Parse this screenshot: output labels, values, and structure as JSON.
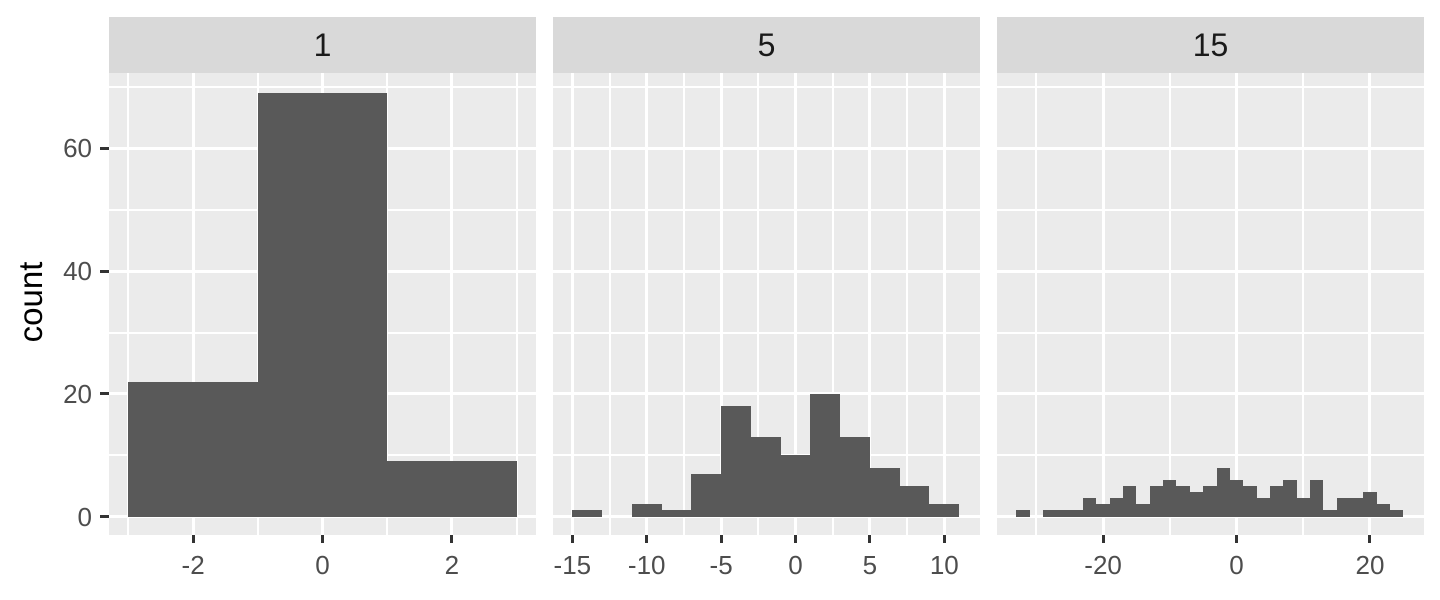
{
  "figure": {
    "y_axis_title": "count",
    "y_ticks": [
      0,
      20,
      40,
      60
    ],
    "y_tick_labels": [
      "0",
      "20",
      "40",
      "60"
    ],
    "y_minor_gridlines": [
      10,
      30,
      50,
      70
    ],
    "ylim": [
      -3,
      72.3
    ],
    "colors": {
      "bar_fill": "#595959",
      "panel_bg": "#EBEBEB",
      "strip_bg": "#D9D9D9",
      "grid": "#FFFFFF",
      "axis_text": "#4D4D4D",
      "strip_text": "#1A1A1A",
      "tick_mark": "#333333",
      "axis_title": "#000000",
      "background": "#FFFFFF"
    }
  },
  "chart_data": [
    {
      "type": "bar",
      "subtype": "histogram",
      "facet_label": "1",
      "ylabel": "count",
      "bin_edges": [
        -3,
        -1,
        1,
        3
      ],
      "counts": [
        22,
        69,
        9
      ],
      "x_ticks": [
        -2,
        0,
        2
      ],
      "x_tick_labels": [
        "-2",
        "0",
        "2"
      ],
      "x_minor_gridlines": [
        -3,
        -1,
        1,
        3
      ],
      "xlim": [
        -3.3,
        3.3
      ],
      "ylim": [
        -3,
        72.3
      ],
      "grid": "on",
      "legend": "none"
    },
    {
      "type": "bar",
      "subtype": "histogram",
      "facet_label": "5",
      "ylabel": "count",
      "bin_edges": [
        -15,
        -13,
        -11,
        -9,
        -7,
        -5,
        -3,
        -1,
        1,
        3,
        5,
        7,
        9,
        11
      ],
      "counts": [
        1,
        0,
        2,
        1,
        7,
        18,
        13,
        10,
        20,
        13,
        8,
        5,
        2
      ],
      "x_ticks": [
        -15,
        -10,
        -5,
        0,
        5,
        10
      ],
      "x_tick_labels": [
        "-15",
        "-10",
        "-5",
        "0",
        "5",
        "10"
      ],
      "x_minor_gridlines": [
        -12.5,
        -7.5,
        -2.5,
        2.5,
        7.5
      ],
      "xlim": [
        -16.3,
        12.4
      ],
      "ylim": [
        -3,
        72.3
      ],
      "grid": "on",
      "legend": "none"
    },
    {
      "type": "bar",
      "subtype": "histogram",
      "facet_label": "15",
      "ylabel": "count",
      "bin_edges": [
        -33,
        -31,
        -29,
        -27,
        -25,
        -23,
        -21,
        -19,
        -17,
        -15,
        -13,
        -11,
        -9,
        -7,
        -5,
        -3,
        -1,
        1,
        3,
        5,
        7,
        9,
        11,
        13,
        15,
        17,
        19,
        21,
        23,
        25
      ],
      "counts": [
        1,
        0,
        1,
        1,
        1,
        3,
        2,
        3,
        5,
        2,
        5,
        6,
        5,
        4,
        5,
        8,
        6,
        5,
        3,
        5,
        6,
        3,
        6,
        1,
        3,
        3,
        4,
        2,
        1
      ],
      "x_ticks": [
        -20,
        0,
        20
      ],
      "x_tick_labels": [
        "-20",
        "0",
        "20"
      ],
      "x_minor_gridlines": [
        -30,
        -10,
        10
      ],
      "xlim": [
        -35.9,
        28.1
      ],
      "ylim": [
        -3,
        72.3
      ],
      "grid": "on",
      "legend": "none"
    }
  ]
}
